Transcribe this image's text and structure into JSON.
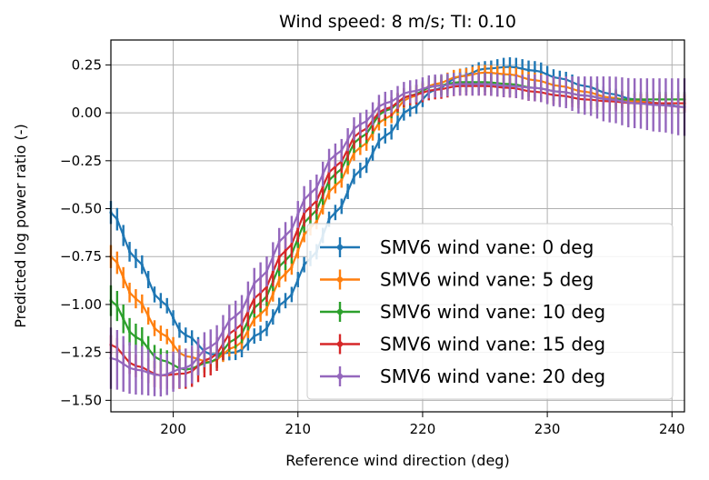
{
  "chart_data": {
    "type": "line",
    "title": "Wind speed: 8 m/s; TI: 0.10",
    "xlabel": "Reference wind direction (deg)",
    "ylabel": "Predicted log power ratio (-)",
    "xlim": [
      195,
      241
    ],
    "ylim": [
      -1.56,
      0.38
    ],
    "xticks": [
      200,
      210,
      220,
      230,
      240
    ],
    "yticks": [
      0.25,
      0.0,
      -0.25,
      -0.5,
      -0.75,
      -1.0,
      -1.25,
      -1.5
    ],
    "ytick_labels": [
      "0.25",
      "0.00",
      "−0.25",
      "−0.50",
      "−0.75",
      "−1.00",
      "−1.25",
      "−1.50"
    ],
    "grid": true,
    "legend_position": "lower-right",
    "x": [
      195,
      197,
      199,
      201,
      203,
      205,
      207,
      209,
      211,
      213,
      215,
      217,
      219,
      221,
      223,
      225,
      227,
      229,
      231,
      233,
      235,
      237,
      239,
      241
    ],
    "series": [
      {
        "name": "SMV6 wind vane: 0 deg",
        "color": "#1f77b4",
        "values": [
          -0.52,
          -0.76,
          -0.98,
          -1.16,
          -1.26,
          -1.25,
          -1.15,
          -0.98,
          -0.76,
          -0.52,
          -0.3,
          -0.12,
          0.02,
          0.12,
          0.19,
          0.23,
          0.24,
          0.22,
          0.18,
          0.14,
          0.1,
          0.07,
          0.05,
          0.03
        ],
        "errors": [
          0.06,
          0.05,
          0.04,
          0.04,
          0.04,
          0.04,
          0.04,
          0.04,
          0.04,
          0.04,
          0.04,
          0.04,
          0.04,
          0.04,
          0.04,
          0.04,
          0.05,
          0.05,
          0.04,
          0.04,
          0.03,
          0.03,
          0.03,
          0.03
        ]
      },
      {
        "name": "SMV6 wind vane: 5 deg",
        "color": "#ff7f0e",
        "values": [
          -0.75,
          -0.97,
          -1.15,
          -1.27,
          -1.3,
          -1.22,
          -1.05,
          -0.84,
          -0.6,
          -0.38,
          -0.18,
          -0.03,
          0.08,
          0.15,
          0.19,
          0.21,
          0.2,
          0.17,
          0.14,
          0.11,
          0.08,
          0.06,
          0.05,
          0.05
        ],
        "errors": [
          0.06,
          0.05,
          0.04,
          0.04,
          0.04,
          0.04,
          0.04,
          0.04,
          0.04,
          0.04,
          0.04,
          0.04,
          0.04,
          0.04,
          0.04,
          0.04,
          0.04,
          0.04,
          0.04,
          0.04,
          0.04,
          0.04,
          0.04,
          0.04
        ]
      },
      {
        "name": "SMV6 wind vane: 10 deg",
        "color": "#2ca02c",
        "values": [
          -0.98,
          -1.17,
          -1.29,
          -1.34,
          -1.3,
          -1.18,
          -0.99,
          -0.77,
          -0.54,
          -0.32,
          -0.13,
          0.01,
          0.09,
          0.14,
          0.16,
          0.16,
          0.15,
          0.13,
          0.11,
          0.09,
          0.07,
          0.07,
          0.07,
          0.07
        ],
        "errors": [
          0.08,
          0.07,
          0.06,
          0.05,
          0.05,
          0.05,
          0.05,
          0.05,
          0.05,
          0.05,
          0.05,
          0.05,
          0.05,
          0.05,
          0.05,
          0.05,
          0.05,
          0.05,
          0.05,
          0.05,
          0.05,
          0.04,
          0.04,
          0.04
        ]
      },
      {
        "name": "SMV6 wind vane: 15 deg",
        "color": "#d62728",
        "values": [
          -1.21,
          -1.32,
          -1.37,
          -1.36,
          -1.28,
          -1.13,
          -0.94,
          -0.72,
          -0.49,
          -0.28,
          -0.1,
          0.02,
          0.09,
          0.12,
          0.14,
          0.14,
          0.13,
          0.11,
          0.09,
          0.07,
          0.06,
          0.05,
          0.05,
          0.05
        ],
        "errors": [
          0.05,
          0.06,
          0.07,
          0.08,
          0.09,
          0.08,
          0.08,
          0.07,
          0.07,
          0.06,
          0.06,
          0.05,
          0.05,
          0.05,
          0.05,
          0.05,
          0.05,
          0.05,
          0.05,
          0.05,
          0.05,
          0.05,
          0.05,
          0.05
        ]
      },
      {
        "name": "SMV6 wind vane: 20 deg",
        "color": "#9467bd",
        "values": [
          -1.28,
          -1.34,
          -1.37,
          -1.33,
          -1.22,
          -1.06,
          -0.86,
          -0.64,
          -0.42,
          -0.22,
          -0.06,
          0.05,
          0.11,
          0.14,
          0.15,
          0.15,
          0.14,
          0.13,
          0.11,
          0.09,
          0.07,
          0.05,
          0.04,
          0.03
        ],
        "errors": [
          0.16,
          0.13,
          0.11,
          0.1,
          0.09,
          0.08,
          0.08,
          0.07,
          0.07,
          0.06,
          0.06,
          0.06,
          0.06,
          0.06,
          0.06,
          0.06,
          0.06,
          0.07,
          0.08,
          0.1,
          0.12,
          0.13,
          0.14,
          0.15
        ]
      }
    ]
  }
}
